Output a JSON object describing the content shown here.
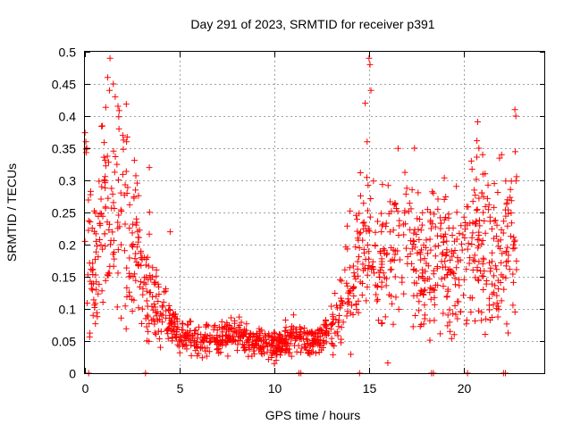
{
  "chart_data": {
    "type": "scatter",
    "title": "Day 291 of 2023, SRMTID for receiver p391",
    "xlabel": "GPS time / hours",
    "ylabel": "SRMTID / TECUs",
    "xlim": [
      0,
      24.3
    ],
    "ylim": [
      0,
      0.5
    ],
    "x_ticks": [
      0,
      5,
      10,
      15,
      20
    ],
    "x_tick_labels": [
      "0",
      "5",
      "10",
      "15",
      "20"
    ],
    "y_ticks": [
      0,
      0.05,
      0.1,
      0.15,
      0.2,
      0.25,
      0.3,
      0.35,
      0.4,
      0.45,
      0.5
    ],
    "y_tick_labels": [
      "0",
      "0.05",
      "0.1",
      "0.15",
      "0.2",
      "0.25",
      "0.3",
      "0.35",
      "0.4",
      "0.45",
      "0.5"
    ],
    "grid": true,
    "marker": "plus",
    "series": [
      {
        "name": "SRMTID",
        "color": "#ff0000",
        "trend": {
          "x": [
            0,
            0.1,
            0.3,
            0.5,
            0.8,
            1.0,
            1.2,
            1.5,
            1.8,
            2.0,
            2.3,
            2.6,
            3.0,
            3.3,
            3.5,
            4.0,
            4.5,
            5.0,
            6.0,
            7.0,
            8.0,
            9.0,
            10.0,
            11.0,
            12.0,
            12.7,
            13.2,
            13.6,
            14.0,
            14.4,
            14.8,
            15.0,
            15.3,
            15.6,
            16.0,
            16.5,
            17.0,
            17.5,
            18.0,
            18.5,
            19.0,
            19.5,
            20.0,
            20.5,
            21.0,
            21.5,
            22.0,
            22.5,
            22.8
          ],
          "y": [
            0.26,
            0.24,
            0.19,
            0.17,
            0.22,
            0.25,
            0.29,
            0.26,
            0.27,
            0.25,
            0.22,
            0.2,
            0.15,
            0.14,
            0.12,
            0.1,
            0.08,
            0.06,
            0.05,
            0.055,
            0.06,
            0.05,
            0.045,
            0.055,
            0.05,
            0.06,
            0.08,
            0.11,
            0.15,
            0.17,
            0.19,
            0.22,
            0.18,
            0.17,
            0.19,
            0.2,
            0.2,
            0.19,
            0.16,
            0.18,
            0.17,
            0.15,
            0.21,
            0.22,
            0.2,
            0.18,
            0.19,
            0.2,
            0.23
          ]
        },
        "n_points": 1400,
        "x_range": [
          0,
          22.8
        ]
      }
    ],
    "peaks": [
      {
        "x": 0.05,
        "y": 0.36
      },
      {
        "x": 0.1,
        "y": 0.35
      },
      {
        "x": 1.2,
        "y": 0.46
      },
      {
        "x": 1.3,
        "y": 0.44
      },
      {
        "x": 1.5,
        "y": 0.45
      },
      {
        "x": 1.6,
        "y": 0.43
      },
      {
        "x": 1.8,
        "y": 0.38
      },
      {
        "x": 2.0,
        "y": 0.37
      },
      {
        "x": 2.2,
        "y": 0.36
      },
      {
        "x": 3.4,
        "y": 0.32
      },
      {
        "x": 4.5,
        "y": 0.22
      },
      {
        "x": 14.8,
        "y": 0.42
      },
      {
        "x": 15.0,
        "y": 0.49
      },
      {
        "x": 15.05,
        "y": 0.48
      },
      {
        "x": 14.9,
        "y": 0.36
      },
      {
        "x": 15.1,
        "y": 0.44
      },
      {
        "x": 17.4,
        "y": 0.35
      },
      {
        "x": 18.4,
        "y": 0.28
      },
      {
        "x": 20.4,
        "y": 0.33
      },
      {
        "x": 20.8,
        "y": 0.35
      },
      {
        "x": 21.0,
        "y": 0.34
      },
      {
        "x": 22.0,
        "y": 0.34
      },
      {
        "x": 22.7,
        "y": 0.41
      },
      {
        "x": 22.75,
        "y": 0.4
      },
      {
        "x": 19.5,
        "y": 0.06
      },
      {
        "x": 10.0,
        "y": 0.015
      },
      {
        "x": 10.1,
        "y": 0.02
      }
    ],
    "zeros_x": [
      0.2,
      3.2,
      11.3,
      11.4,
      14.5,
      18.3,
      18.4,
      20.2,
      22.1,
      22.2
    ]
  }
}
